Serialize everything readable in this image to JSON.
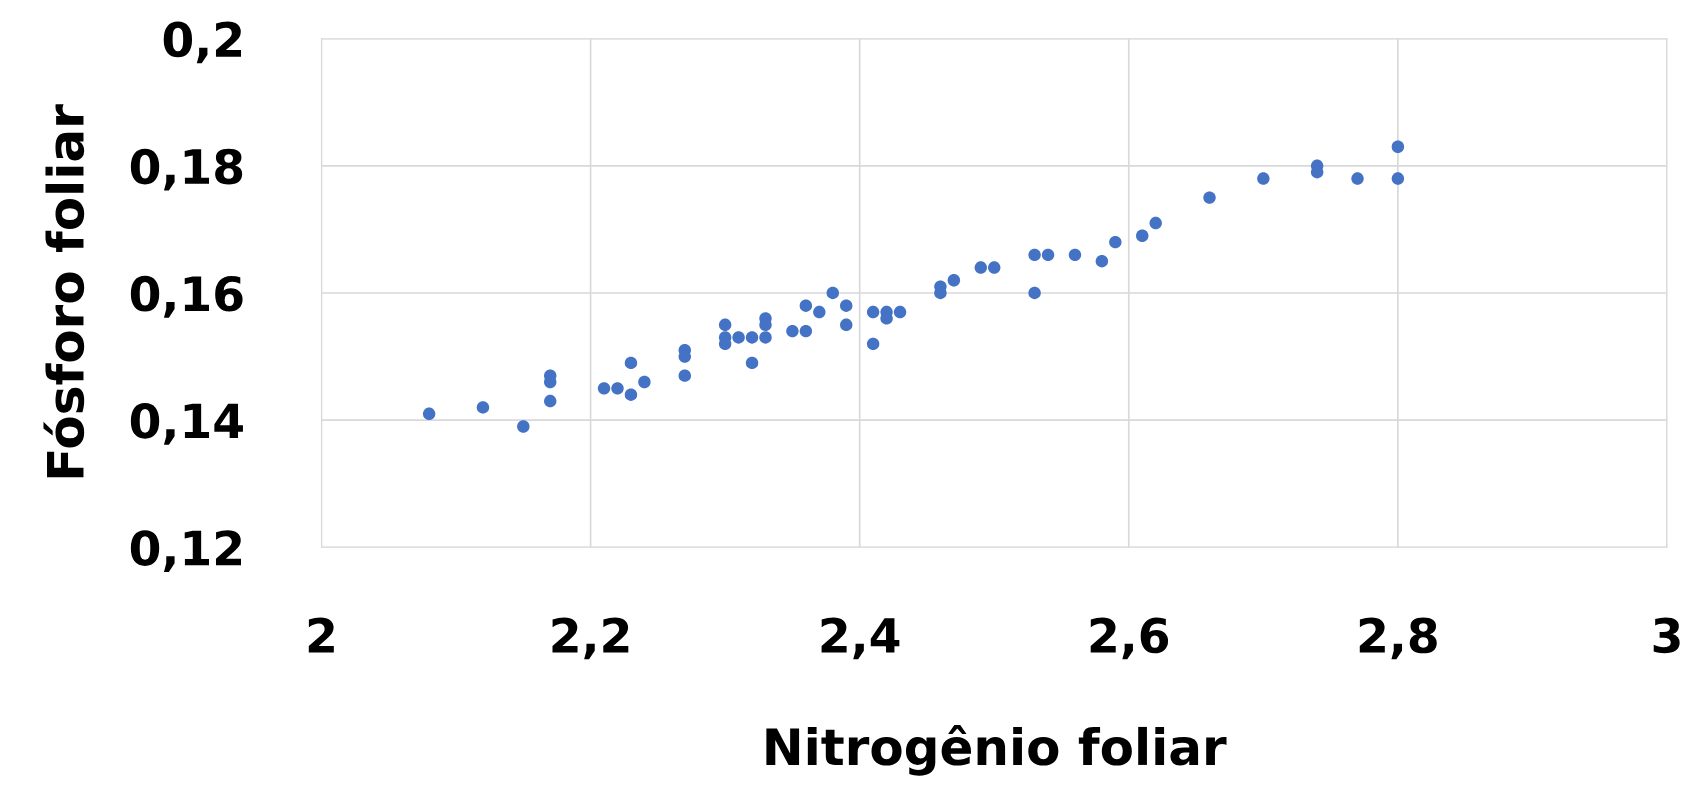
{
  "chart_data": {
    "type": "scatter",
    "xlabel": "Nitrogênio foliar",
    "ylabel": "Fósforo foliar",
    "x": [
      2.08,
      2.12,
      2.15,
      2.17,
      2.17,
      2.17,
      2.21,
      2.22,
      2.23,
      2.23,
      2.24,
      2.27,
      2.27,
      2.27,
      2.3,
      2.3,
      2.3,
      2.31,
      2.32,
      2.32,
      2.33,
      2.33,
      2.33,
      2.35,
      2.36,
      2.36,
      2.37,
      2.38,
      2.39,
      2.39,
      2.41,
      2.41,
      2.42,
      2.42,
      2.43,
      2.46,
      2.46,
      2.47,
      2.49,
      2.5,
      2.53,
      2.53,
      2.54,
      2.56,
      2.58,
      2.59,
      2.61,
      2.62,
      2.66,
      2.7,
      2.74,
      2.74,
      2.77,
      2.8,
      2.8
    ],
    "series": [
      {
        "color": "#4472c4",
        "values": [
          0.141,
          0.142,
          0.139,
          0.147,
          0.146,
          0.143,
          0.145,
          0.145,
          0.149,
          0.144,
          0.146,
          0.151,
          0.15,
          0.147,
          0.155,
          0.153,
          0.152,
          0.153,
          0.153,
          0.149,
          0.156,
          0.155,
          0.153,
          0.154,
          0.158,
          0.154,
          0.157,
          0.16,
          0.158,
          0.155,
          0.157,
          0.152,
          0.157,
          0.156,
          0.157,
          0.161,
          0.16,
          0.162,
          0.164,
          0.164,
          0.166,
          0.16,
          0.166,
          0.166,
          0.165,
          0.168,
          0.169,
          0.171,
          0.175,
          0.178,
          0.18,
          0.179,
          0.178,
          0.183,
          0.178
        ]
      }
    ],
    "xlim": [
      2,
      3
    ],
    "ylim": [
      0.12,
      0.2
    ],
    "xticks": [
      2,
      {
        "value": 2.2,
        "label": "2,2"
      },
      {
        "value": 2.4,
        "label": "2,4"
      },
      {
        "value": 2.6,
        "label": "2,6"
      },
      {
        "value": 2.8,
        "label": "2,8"
      },
      3
    ],
    "yticks": [
      {
        "value": 0.12,
        "label": "0,12"
      },
      {
        "value": 0.14,
        "label": "0,14"
      },
      {
        "value": 0.16,
        "label": "0,16"
      },
      {
        "value": 0.18,
        "label": "0,18"
      },
      {
        "value": 0.2,
        "label": "0,2"
      }
    ],
    "grid": true,
    "marker": "circle"
  }
}
